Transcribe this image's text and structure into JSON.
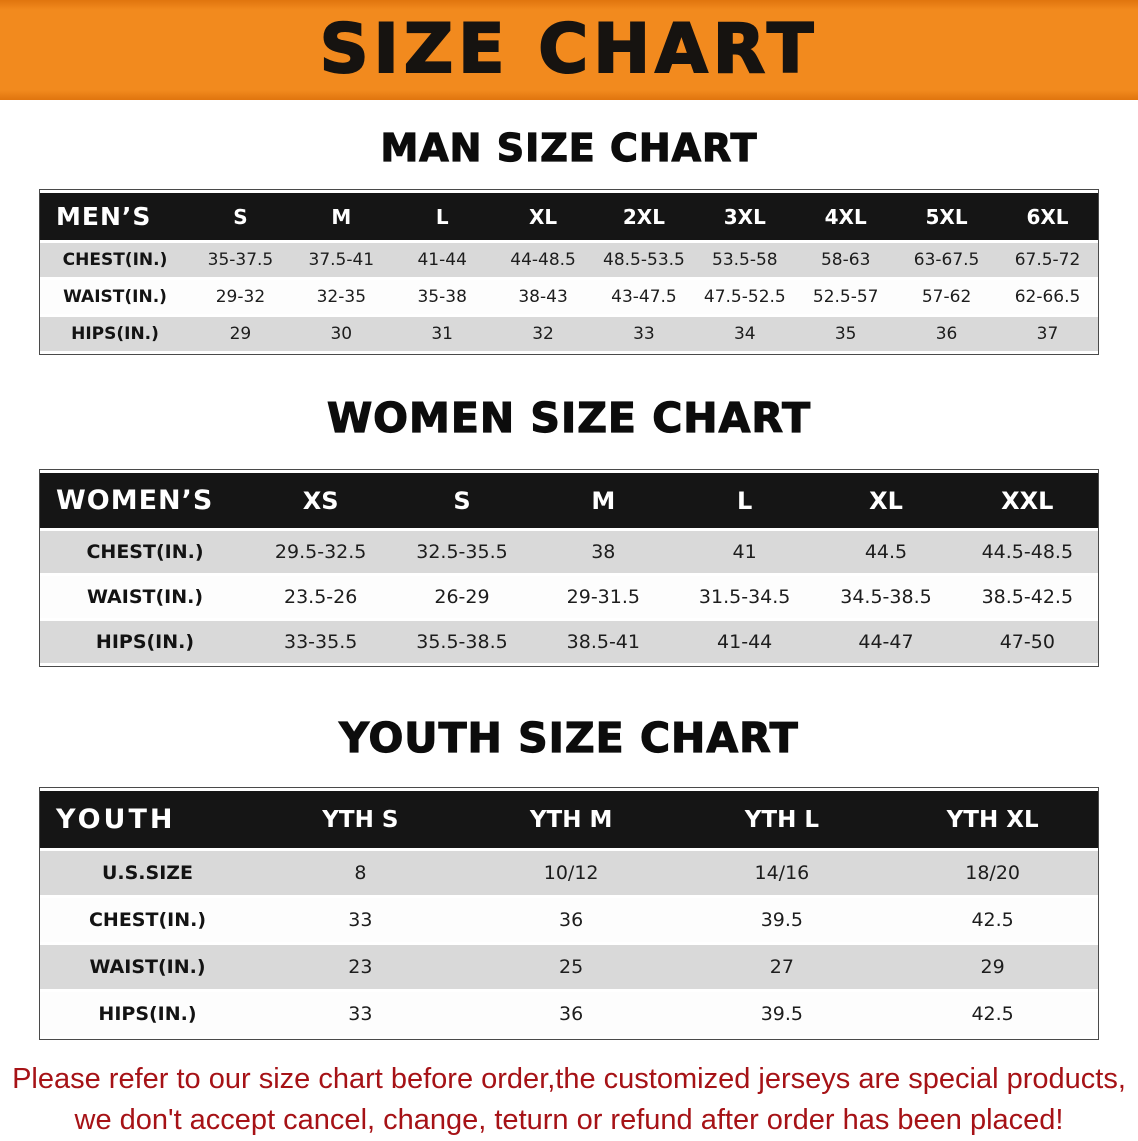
{
  "banner": {
    "title": "SIZE CHART",
    "bg_color": "#f28a1e",
    "text_color": "#161310"
  },
  "colors": {
    "banner_orange": "#f28a1e",
    "table_header_black": "#151515",
    "row_shaded_gray": "#d9d9d9",
    "disclaimer_red": "#a61216"
  },
  "sections": [
    {
      "heading": "MAN SIZE CHART",
      "table": {
        "header_label": "MEN’S",
        "columns": [
          "S",
          "M",
          "L",
          "XL",
          "2XL",
          "3XL",
          "4XL",
          "5XL",
          "6XL"
        ],
        "rows": [
          {
            "label": "CHEST(IN.)",
            "values": [
              "35-37.5",
              "37.5-41",
              "41-44",
              "44-48.5",
              "48.5-53.5",
              "53.5-58",
              "58-63",
              "63-67.5",
              "67.5-72"
            ]
          },
          {
            "label": "WAIST(IN.)",
            "values": [
              "29-32",
              "32-35",
              "35-38",
              "38-43",
              "43-47.5",
              "47.5-52.5",
              "52.5-57",
              "57-62",
              "62-66.5"
            ]
          },
          {
            "label": "HIPS(IN.)",
            "values": [
              "29",
              "30",
              "31",
              "32",
              "33",
              "34",
              "35",
              "36",
              "37"
            ]
          }
        ]
      }
    },
    {
      "heading": "WOMEN SIZE CHART",
      "table": {
        "header_label": "WOMEN’S",
        "columns": [
          "XS",
          "S",
          "M",
          "L",
          "XL",
          "XXL"
        ],
        "rows": [
          {
            "label": "CHEST(IN.)",
            "values": [
              "29.5-32.5",
              "32.5-35.5",
              "38",
              "41",
              "44.5",
              "44.5-48.5"
            ]
          },
          {
            "label": "WAIST(IN.)",
            "values": [
              "23.5-26",
              "26-29",
              "29-31.5",
              "31.5-34.5",
              "34.5-38.5",
              "38.5-42.5"
            ]
          },
          {
            "label": "HIPS(IN.)",
            "values": [
              "33-35.5",
              "35.5-38.5",
              "38.5-41",
              "41-44",
              "44-47",
              "47-50"
            ]
          }
        ]
      }
    },
    {
      "heading": "YOUTH SIZE CHART",
      "table": {
        "header_label": "YOUTH",
        "columns": [
          "YTH S",
          "YTH M",
          "YTH L",
          "YTH XL"
        ],
        "rows": [
          {
            "label": "U.S.SIZE",
            "values": [
              "8",
              "10/12",
              "14/16",
              "18/20"
            ]
          },
          {
            "label": "CHEST(IN.)",
            "values": [
              "33",
              "36",
              "39.5",
              "42.5"
            ]
          },
          {
            "label": "WAIST(IN.)",
            "values": [
              "23",
              "25",
              "27",
              "29"
            ]
          },
          {
            "label": "HIPS(IN.)",
            "values": [
              "33",
              "36",
              "39.5",
              "42.5"
            ]
          }
        ]
      }
    }
  ],
  "disclaimer": {
    "line1": "Please refer to our size chart before order,the customized jerseys are special products,",
    "line2": "we don't accept cancel, change, teturn or refund after order has been placed!"
  },
  "chart_data": [
    {
      "type": "table",
      "title": "MAN SIZE CHART",
      "columns": [
        "MEN’S",
        "S",
        "M",
        "L",
        "XL",
        "2XL",
        "3XL",
        "4XL",
        "5XL",
        "6XL"
      ],
      "rows": [
        [
          "CHEST(IN.)",
          "35-37.5",
          "37.5-41",
          "41-44",
          "44-48.5",
          "48.5-53.5",
          "53.5-58",
          "58-63",
          "63-67.5",
          "67.5-72"
        ],
        [
          "WAIST(IN.)",
          "29-32",
          "32-35",
          "35-38",
          "38-43",
          "43-47.5",
          "47.5-52.5",
          "52.5-57",
          "57-62",
          "62-66.5"
        ],
        [
          "HIPS(IN.)",
          "29",
          "30",
          "31",
          "32",
          "33",
          "34",
          "35",
          "36",
          "37"
        ]
      ]
    },
    {
      "type": "table",
      "title": "WOMEN SIZE CHART",
      "columns": [
        "WOMEN’S",
        "XS",
        "S",
        "M",
        "L",
        "XL",
        "XXL"
      ],
      "rows": [
        [
          "CHEST(IN.)",
          "29.5-32.5",
          "32.5-35.5",
          "38",
          "41",
          "44.5",
          "44.5-48.5"
        ],
        [
          "WAIST(IN.)",
          "23.5-26",
          "26-29",
          "29-31.5",
          "31.5-34.5",
          "34.5-38.5",
          "38.5-42.5"
        ],
        [
          "HIPS(IN.)",
          "33-35.5",
          "35.5-38.5",
          "38.5-41",
          "41-44",
          "44-47",
          "47-50"
        ]
      ]
    },
    {
      "type": "table",
      "title": "YOUTH SIZE CHART",
      "columns": [
        "YOUTH",
        "YTH S",
        "YTH M",
        "YTH L",
        "YTH XL"
      ],
      "rows": [
        [
          "U.S.SIZE",
          "8",
          "10/12",
          "14/16",
          "18/20"
        ],
        [
          "CHEST(IN.)",
          "33",
          "36",
          "39.5",
          "42.5"
        ],
        [
          "WAIST(IN.)",
          "23",
          "25",
          "27",
          "29"
        ],
        [
          "HIPS(IN.)",
          "33",
          "36",
          "39.5",
          "42.5"
        ]
      ]
    }
  ]
}
